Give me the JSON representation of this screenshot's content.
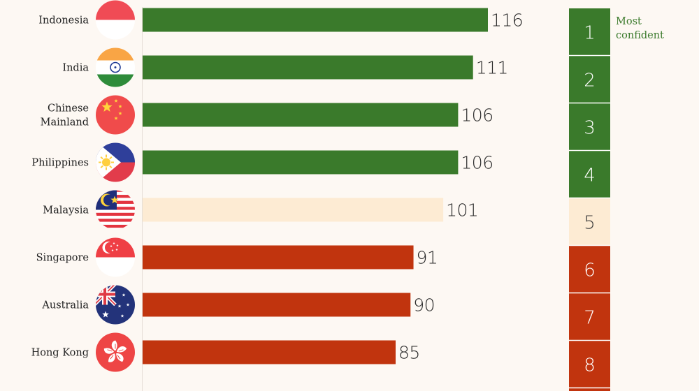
{
  "colors": {
    "high": "#3a7a2b",
    "mid": "#fdebd3",
    "low": "#c1340e",
    "background": "#fdf8f3",
    "rank_text_light": "#ffffff",
    "rank_text_dark": "#3a3a3a",
    "note_text": "#3a7a2b"
  },
  "rank_note": [
    "Most",
    "confident"
  ],
  "chart_data": {
    "type": "bar",
    "orientation": "horizontal",
    "categories": [
      [
        "Indonesia"
      ],
      [
        "India"
      ],
      [
        "Chinese",
        "Mainland"
      ],
      [
        "Philippines"
      ],
      [
        "Malaysia"
      ],
      [
        "Singapore"
      ],
      [
        "Australia"
      ],
      [
        "Hong Kong"
      ]
    ],
    "values": [
      116,
      111,
      106,
      106,
      101,
      91,
      90,
      85
    ],
    "ranks": [
      "1",
      "2",
      "3",
      "4",
      "5",
      "6",
      "7",
      "8"
    ],
    "tiers": [
      "high",
      "high",
      "high",
      "high",
      "mid",
      "low",
      "low",
      "low"
    ],
    "flags": [
      "indonesia-flag",
      "india-flag",
      "china-flag",
      "philippines-flag",
      "malaysia-flag",
      "singapore-flag",
      "australia-flag",
      "hong-kong-flag"
    ],
    "xlim": [
      0,
      116
    ],
    "title": "",
    "xlabel": "",
    "ylabel": "",
    "legend": "none",
    "grid": false
  }
}
